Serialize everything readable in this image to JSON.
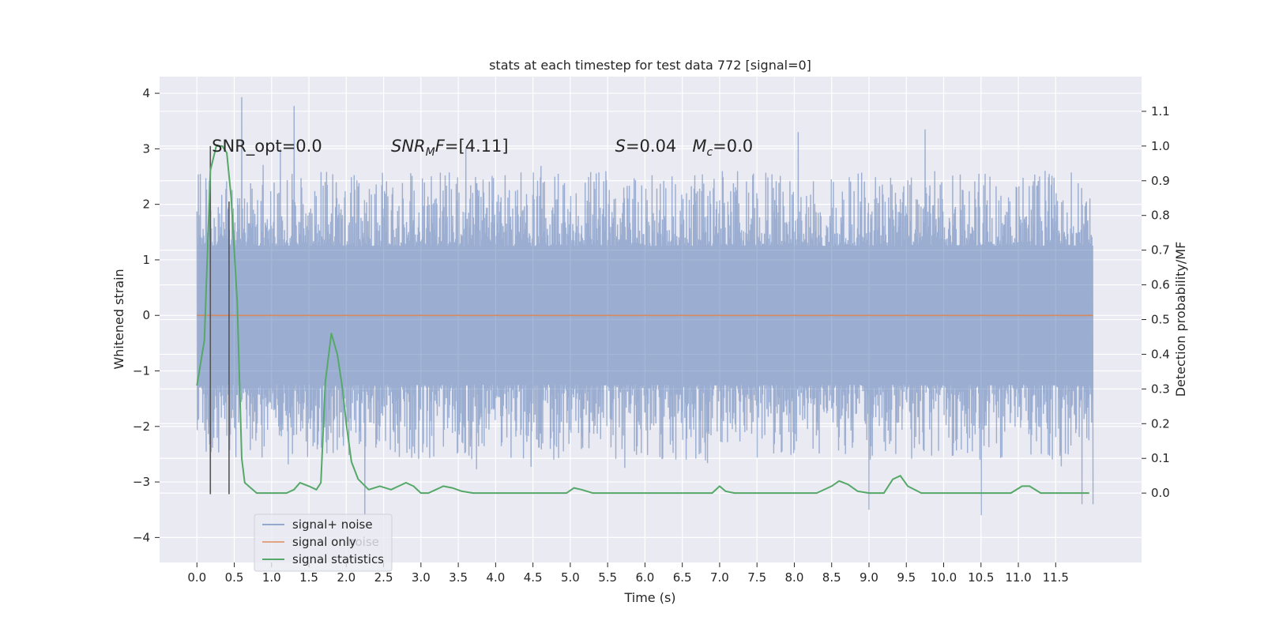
{
  "chart_data": {
    "type": "line",
    "title": "stats at each timestep for test data 772 [signal=0]",
    "xlabel": "Time (s)",
    "ylabel_left": "Whitened strain",
    "ylabel_right": "Detection probability/MF",
    "xlim": [
      -0.5,
      12.65
    ],
    "ylim_left": [
      -4.45,
      4.3
    ],
    "ylim_right": [
      -0.2,
      1.2
    ],
    "x_ticks": [
      0.0,
      0.5,
      1.0,
      1.5,
      2.0,
      2.5,
      3.0,
      3.5,
      4.0,
      4.5,
      5.0,
      5.5,
      6.0,
      6.5,
      7.0,
      7.5,
      8.0,
      8.5,
      9.0,
      9.5,
      10.0,
      10.5,
      11.0,
      11.5
    ],
    "x_tick_labels": [
      "0.0",
      "0.5",
      "1.0",
      "1.5",
      "2.0",
      "2.5",
      "3.0",
      "3.5",
      "4.0",
      "4.5",
      "5.0",
      "5.5",
      "6.0",
      "6.5",
      "7.0",
      "7.5",
      "8.0",
      "8.5",
      "9.0",
      "9.5",
      "10.0",
      "10.5",
      "11.0",
      "11.5"
    ],
    "y_left_ticks": [
      -4,
      -3,
      -2,
      -1,
      0,
      1,
      2,
      3,
      4
    ],
    "y_left_tick_labels": [
      "−4",
      "−3",
      "−2",
      "−1",
      "0",
      "1",
      "2",
      "3",
      "4"
    ],
    "y_right_ticks": [
      0.0,
      0.1,
      0.2,
      0.3,
      0.4,
      0.5,
      0.6,
      0.7,
      0.8,
      0.9,
      1.0,
      1.1
    ],
    "y_right_tick_labels": [
      "0.0",
      "0.1",
      "0.2",
      "0.3",
      "0.4",
      "0.5",
      "0.6",
      "0.7",
      "0.8",
      "0.9",
      "1.0",
      "1.1"
    ],
    "grid": true,
    "legend_position": "bottom-left",
    "series": [
      {
        "name": "signal+ noise",
        "axis": "left",
        "color": "#4c72b0",
        "description_kind": "noise",
        "x_range": [
          0.0,
          12.0
        ],
        "typical_max": 2.5,
        "typical_min": -2.5,
        "peak_max": [
          [
            0.6,
            3.93
          ],
          [
            1.3,
            3.77
          ],
          [
            8.05,
            3.3
          ],
          [
            9.75,
            3.35
          ],
          [
            1.12,
            3.0
          ],
          [
            3.6,
            3.0
          ]
        ],
        "peak_min": [
          [
            2.25,
            -3.6
          ],
          [
            10.5,
            -3.6
          ],
          [
            9.0,
            -3.5
          ],
          [
            12.0,
            -3.4
          ],
          [
            11.85,
            -3.4
          ]
        ]
      },
      {
        "name": "signal only",
        "axis": "left",
        "color": "#dd8452",
        "x": [
          0.0,
          12.0
        ],
        "y": [
          0.0,
          0.0
        ]
      },
      {
        "name": "signal statistics",
        "axis": "right",
        "color": "#55a868",
        "x": [
          0.0,
          0.1,
          0.18,
          0.26,
          0.34,
          0.4,
          0.46,
          0.54,
          0.6,
          0.64,
          0.8,
          1.0,
          1.2,
          1.3,
          1.38,
          1.5,
          1.6,
          1.66,
          1.72,
          1.8,
          1.88,
          1.95,
          2.0,
          2.07,
          2.16,
          2.3,
          2.45,
          2.6,
          2.7,
          2.8,
          2.9,
          3.0,
          3.1,
          3.2,
          3.3,
          3.42,
          3.55,
          3.7,
          3.9,
          4.2,
          4.5,
          4.8,
          4.95,
          5.05,
          5.15,
          5.3,
          5.5,
          5.8,
          6.0,
          6.3,
          6.6,
          6.9,
          7.0,
          7.08,
          7.2,
          7.5,
          7.8,
          8.0,
          8.3,
          8.5,
          8.6,
          8.72,
          8.85,
          9.0,
          9.2,
          9.32,
          9.42,
          9.52,
          9.7,
          10.0,
          10.5,
          10.9,
          11.05,
          11.15,
          11.3,
          11.6,
          11.85,
          11.95
        ],
        "y": [
          0.31,
          0.44,
          0.93,
          1.0,
          1.0,
          0.98,
          0.85,
          0.55,
          0.1,
          0.03,
          0.0,
          0.0,
          0.0,
          0.01,
          0.03,
          0.02,
          0.01,
          0.03,
          0.32,
          0.46,
          0.4,
          0.3,
          0.2,
          0.09,
          0.04,
          0.01,
          0.02,
          0.01,
          0.02,
          0.03,
          0.02,
          0.0,
          0.0,
          0.01,
          0.02,
          0.015,
          0.005,
          0.0,
          0.0,
          0.0,
          0.0,
          0.0,
          0.0,
          0.015,
          0.01,
          0.0,
          0.0,
          0.0,
          0.0,
          0.0,
          0.0,
          0.0,
          0.02,
          0.005,
          0.0,
          0.0,
          0.0,
          0.0,
          0.0,
          0.02,
          0.035,
          0.025,
          0.005,
          0.0,
          0.0,
          0.04,
          0.05,
          0.02,
          0.0,
          0.0,
          0.0,
          0.0,
          0.02,
          0.02,
          0.0,
          0.0,
          0.0,
          0.0
        ]
      }
    ],
    "vertical_markers": {
      "axis": "left",
      "color": "#555555",
      "x": [
        0.18,
        0.43
      ],
      "y_bottom": -3.22,
      "y_top": [
        3.05,
        2.05
      ]
    },
    "annotations": [
      {
        "id": "snr-opt",
        "text": "SNR_opt=0.0",
        "x": 0.2,
        "y": 3.05
      },
      {
        "id": "snr-mf",
        "text": "SNR_MF=[4.11]",
        "x": 2.6,
        "y": 3.05
      },
      {
        "id": "s-mc",
        "text": "S=0.04   M_c=0.0",
        "x": 5.6,
        "y": 3.05
      }
    ],
    "legend_entries": [
      "signal+ noise",
      "signal only",
      "signal statistics"
    ],
    "legend_ghost_text": "noise"
  }
}
